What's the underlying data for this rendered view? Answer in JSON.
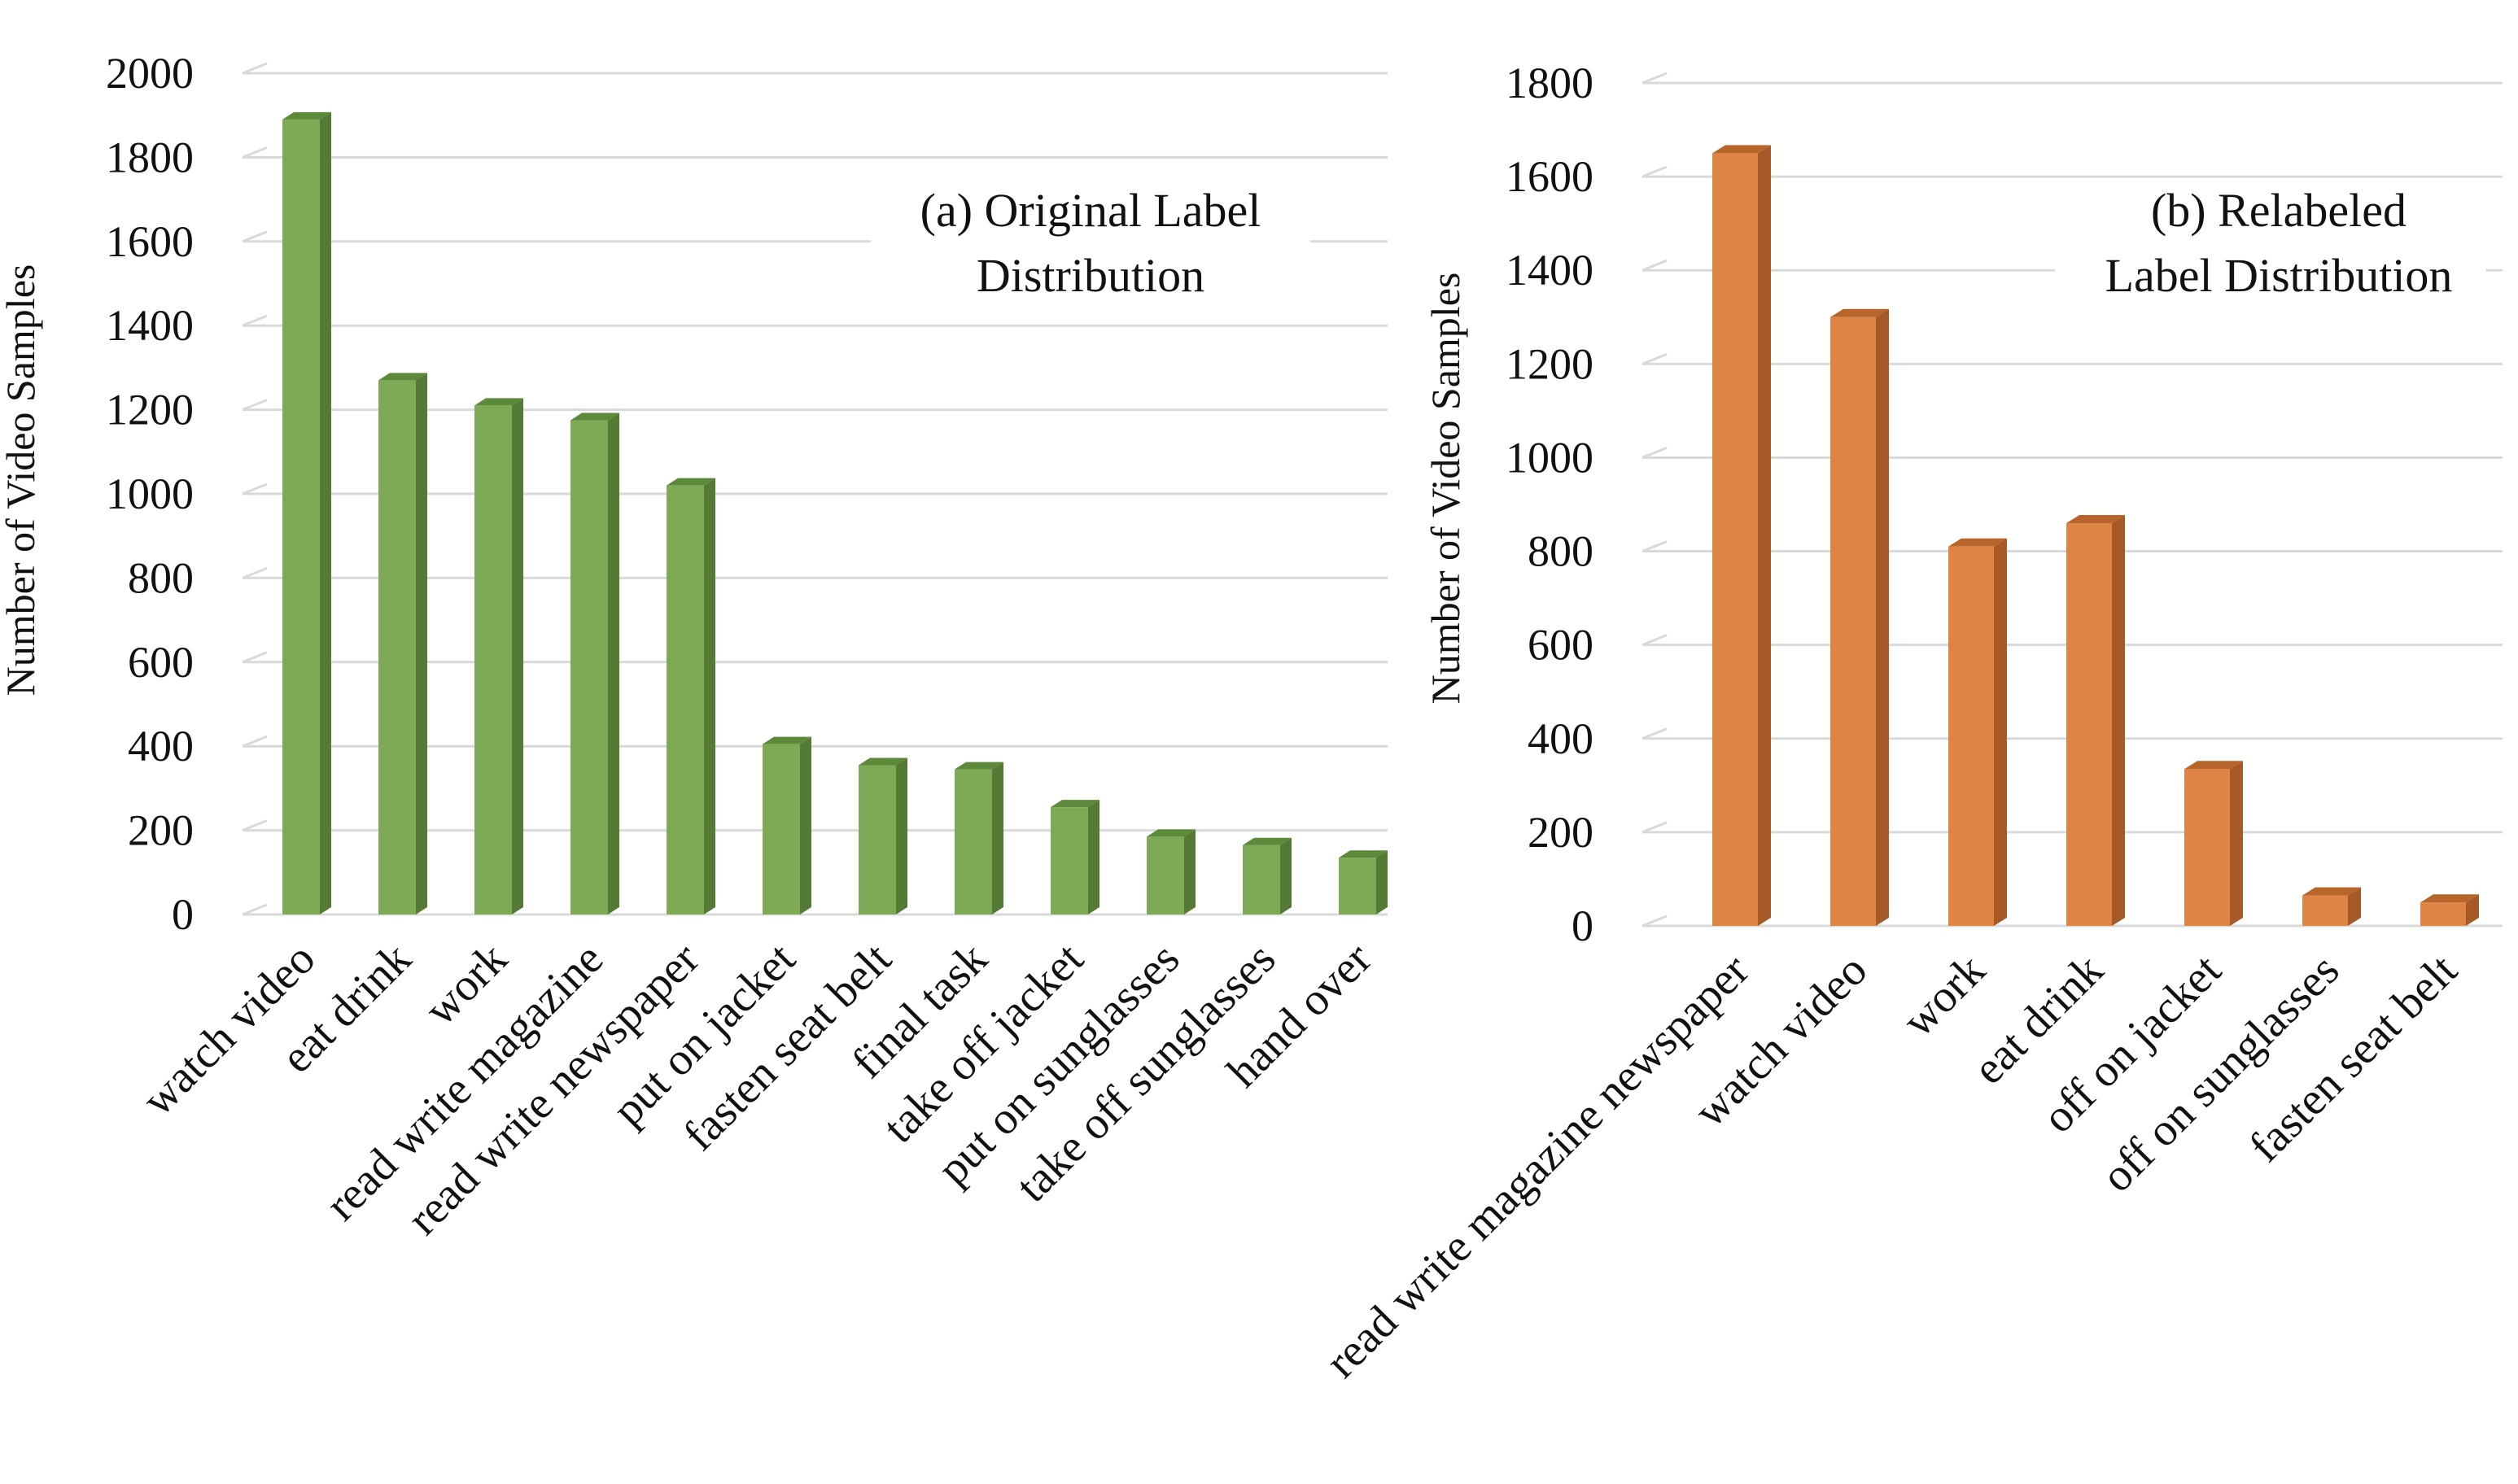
{
  "chart_data": [
    {
      "type": "bar",
      "title": [
        "(a) Original Label",
        "Distribution"
      ],
      "ylabel": "Number of Video Samples",
      "xlabel": "",
      "ylim": [
        0,
        2000
      ],
      "yticks": [
        0,
        200,
        400,
        600,
        800,
        1000,
        1200,
        1400,
        1600,
        1800,
        2000
      ],
      "grid": true,
      "bar_color": "#7ea955",
      "bar_side_color": "#557a36",
      "bar_top_color": "#5d8a3a",
      "categories": [
        "watch video",
        "eat drink",
        "work",
        "read write magazine",
        "read write newspaper",
        "put on jacket",
        "fasten seat belt",
        "final task",
        "take off jacket",
        "put on sunglasses",
        "take off sunglasses",
        "hand over"
      ],
      "values": [
        1890,
        1270,
        1210,
        1175,
        1020,
        405,
        355,
        345,
        255,
        185,
        165,
        135
      ]
    },
    {
      "type": "bar",
      "title": [
        "(b) Relabeled",
        "Label Distribution"
      ],
      "ylabel": "Number of Video Samples",
      "xlabel": "",
      "ylim": [
        0,
        1800
      ],
      "yticks": [
        0,
        200,
        400,
        600,
        800,
        1000,
        1200,
        1400,
        1600,
        1800
      ],
      "grid": true,
      "bar_color": "#de8444",
      "bar_side_color": "#a55a27",
      "bar_top_color": "#b8652c",
      "categories": [
        "read write magazine newspaper",
        "watch video",
        "work",
        "eat drink",
        "off on jacket",
        "off on sunglasses",
        "fasten seat belt"
      ],
      "values": [
        1650,
        1300,
        810,
        860,
        335,
        65,
        50
      ]
    }
  ]
}
